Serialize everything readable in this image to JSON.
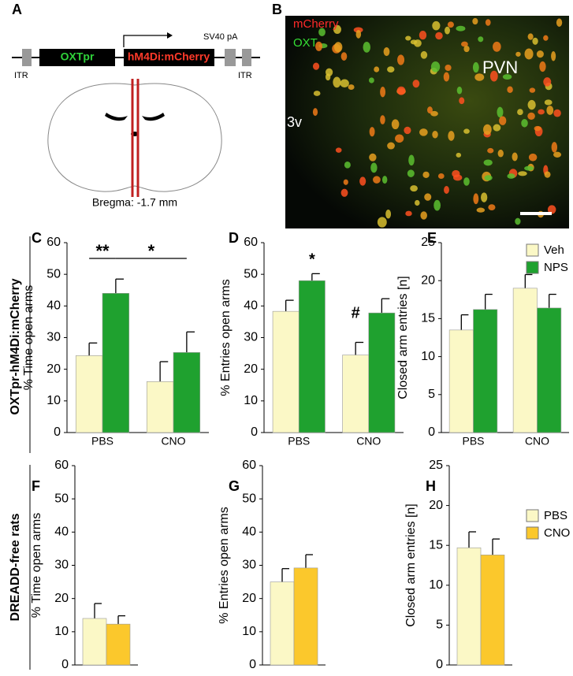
{
  "panel_a": {
    "label": "A",
    "promoter": "OXTpr",
    "transgene": "hM4Di:mCherry",
    "polya": "SV40 pA",
    "itr_left": "ITR",
    "itr_right": "ITR",
    "bregma": "Bregma: -1.7 mm"
  },
  "panel_b": {
    "label": "B",
    "channel_red": "mCherry",
    "channel_green": "OXT",
    "region": "PVN",
    "ventricle": "3v"
  },
  "row_labels": [
    "OXTpr-hM4Di:mCherry",
    "DREADD-free rats"
  ],
  "chart_data": [
    {
      "type": "bar",
      "panel_label": "C",
      "ylabel": "% Time open arms",
      "categories": [
        "PBS",
        "CNO"
      ],
      "ylim": [
        0,
        60
      ],
      "yticks": [
        0,
        10,
        20,
        30,
        40,
        50,
        60
      ],
      "series": [
        {
          "name": "Veh",
          "color": "#fbf8c6",
          "values": [
            24.3,
            16.1
          ],
          "errors": [
            4,
            6.3
          ]
        },
        {
          "name": "NPS",
          "color": "#1fa12f",
          "values": [
            44,
            25.3
          ],
          "errors": [
            4.5,
            6.5
          ]
        }
      ],
      "annotations": [
        "**",
        "*"
      ]
    },
    {
      "type": "bar",
      "panel_label": "D",
      "ylabel": "% Entries open arms",
      "categories": [
        "PBS",
        "CNO"
      ],
      "ylim": [
        0,
        60
      ],
      "yticks": [
        0,
        10,
        20,
        30,
        40,
        50,
        60
      ],
      "series": [
        {
          "name": "Veh",
          "color": "#fbf8c6",
          "values": [
            38.3,
            24.5
          ],
          "errors": [
            3.5,
            4
          ]
        },
        {
          "name": "NPS",
          "color": "#1fa12f",
          "values": [
            48,
            37.8
          ],
          "errors": [
            2.2,
            4.5
          ]
        }
      ],
      "annotations": [
        "*",
        "#"
      ]
    },
    {
      "type": "bar",
      "panel_label": "E",
      "ylabel": "Closed arm entries [n]",
      "categories": [
        "PBS",
        "CNO"
      ],
      "ylim": [
        0,
        25
      ],
      "yticks": [
        0,
        5,
        10,
        15,
        20,
        25
      ],
      "legend": true,
      "series": [
        {
          "name": "Veh",
          "color": "#fbf8c6",
          "values": [
            13.5,
            19
          ],
          "errors": [
            2,
            1.8
          ]
        },
        {
          "name": "NPS",
          "color": "#1fa12f",
          "values": [
            16.2,
            16.4
          ],
          "errors": [
            2,
            1.8
          ]
        }
      ]
    },
    {
      "type": "bar",
      "panel_label": "F",
      "ylabel": "% Time open arms",
      "categories": [
        null
      ],
      "ylim": [
        0,
        60
      ],
      "yticks": [
        0,
        10,
        20,
        30,
        40,
        50,
        60
      ],
      "series": [
        {
          "name": "PBS",
          "color": "#fbf8c6",
          "values": [
            14
          ],
          "errors": [
            4.5
          ]
        },
        {
          "name": "CNO",
          "color": "#fbc82c",
          "values": [
            12.3
          ],
          "errors": [
            2.5
          ]
        }
      ]
    },
    {
      "type": "bar",
      "panel_label": "G",
      "ylabel": "% Entries open arms",
      "categories": [
        null
      ],
      "ylim": [
        0,
        60
      ],
      "yticks": [
        0,
        10,
        20,
        30,
        40,
        50,
        60
      ],
      "series": [
        {
          "name": "PBS",
          "color": "#fbf8c6",
          "values": [
            25
          ],
          "errors": [
            4
          ]
        },
        {
          "name": "CNO",
          "color": "#fbc82c",
          "values": [
            29.2
          ],
          "errors": [
            4
          ]
        }
      ]
    },
    {
      "type": "bar",
      "panel_label": "H",
      "ylabel": "Closed arm entries [n]",
      "categories": [
        null
      ],
      "ylim": [
        0,
        25
      ],
      "yticks": [
        0,
        5,
        10,
        15,
        20,
        25
      ],
      "legend": true,
      "series": [
        {
          "name": "PBS",
          "color": "#fbf8c6",
          "values": [
            14.7
          ],
          "errors": [
            2
          ]
        },
        {
          "name": "CNO",
          "color": "#fbc82c",
          "values": [
            13.8
          ],
          "errors": [
            2
          ]
        }
      ]
    }
  ]
}
